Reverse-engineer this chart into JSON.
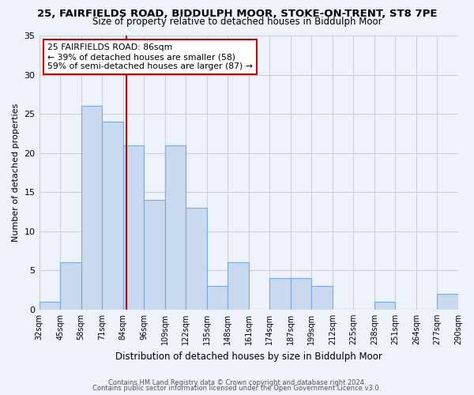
{
  "title": "25, FAIRFIELDS ROAD, BIDDULPH MOOR, STOKE-ON-TRENT, ST8 7PE",
  "subtitle": "Size of property relative to detached houses in Biddulph Moor",
  "xlabel": "Distribution of detached houses by size in Biddulph Moor",
  "ylabel": "Number of detached properties",
  "bin_edges": [
    "32sqm",
    "45sqm",
    "58sqm",
    "71sqm",
    "84sqm",
    "96sqm",
    "109sqm",
    "122sqm",
    "135sqm",
    "148sqm",
    "161sqm",
    "174sqm",
    "187sqm",
    "199sqm",
    "212sqm",
    "225sqm",
    "238sqm",
    "251sqm",
    "264sqm",
    "277sqm",
    "290sqm"
  ],
  "bar_values": [
    1,
    6,
    26,
    24,
    21,
    14,
    21,
    13,
    3,
    6,
    0,
    4,
    4,
    3,
    0,
    0,
    1,
    0,
    0,
    2
  ],
  "bar_color": "#c9d9f0",
  "bar_edge_color": "#7aa8d8",
  "vline_color": "#cc0000",
  "annotation_text": "25 FAIRFIELDS ROAD: 86sqm\n← 39% of detached houses are smaller (58)\n59% of semi-detached houses are larger (87) →",
  "annotation_box_color": "#ffffff",
  "annotation_box_edge": "#cc0000",
  "ylim": [
    0,
    35
  ],
  "yticks": [
    0,
    5,
    10,
    15,
    20,
    25,
    30,
    35
  ],
  "footer1": "Contains HM Land Registry data © Crown copyright and database right 2024.",
  "footer2": "Contains public sector information licensed under the Open Government Licence v3.0.",
  "background_color": "#eef2fa",
  "axes_bg_color": "#eef2fa"
}
